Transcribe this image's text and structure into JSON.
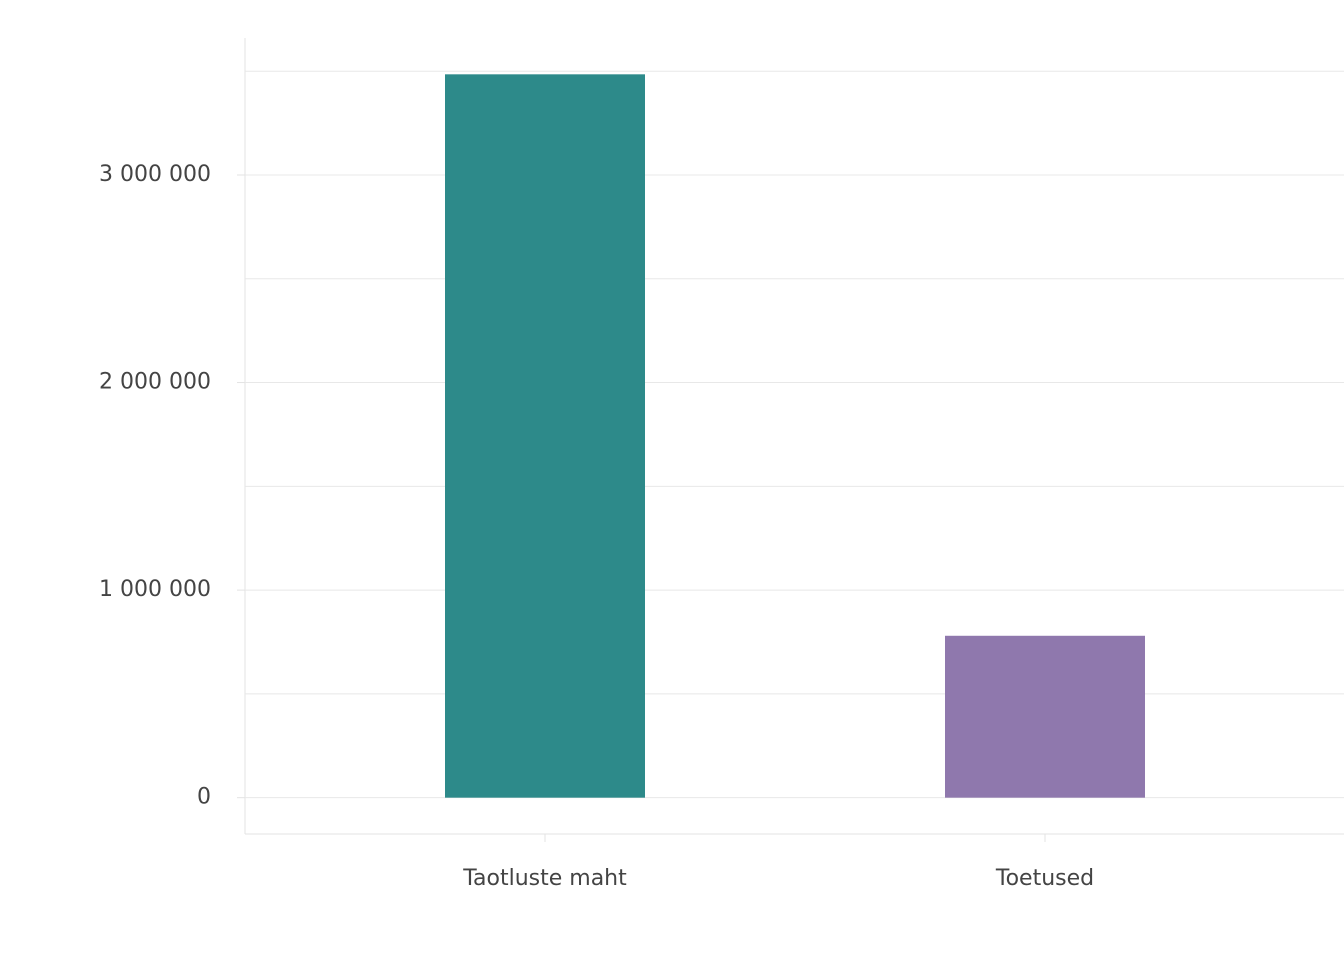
{
  "chart_data": {
    "type": "bar",
    "categories": [
      "Taotluste maht",
      "Toetused"
    ],
    "values": [
      3485000,
      780000
    ],
    "colors": [
      "#2d8a8a",
      "#8f78ad"
    ],
    "ylim": [
      -175000,
      3660000
    ],
    "yticks": [
      {
        "value": 0,
        "label": "0"
      },
      {
        "value": 1000000,
        "label": "1 000 000"
      },
      {
        "value": 2000000,
        "label": "2 000 000"
      },
      {
        "value": 3000000,
        "label": "3 000 000"
      }
    ],
    "minor_yticks": [
      500000,
      1500000,
      2500000,
      3500000
    ],
    "grid": true
  }
}
